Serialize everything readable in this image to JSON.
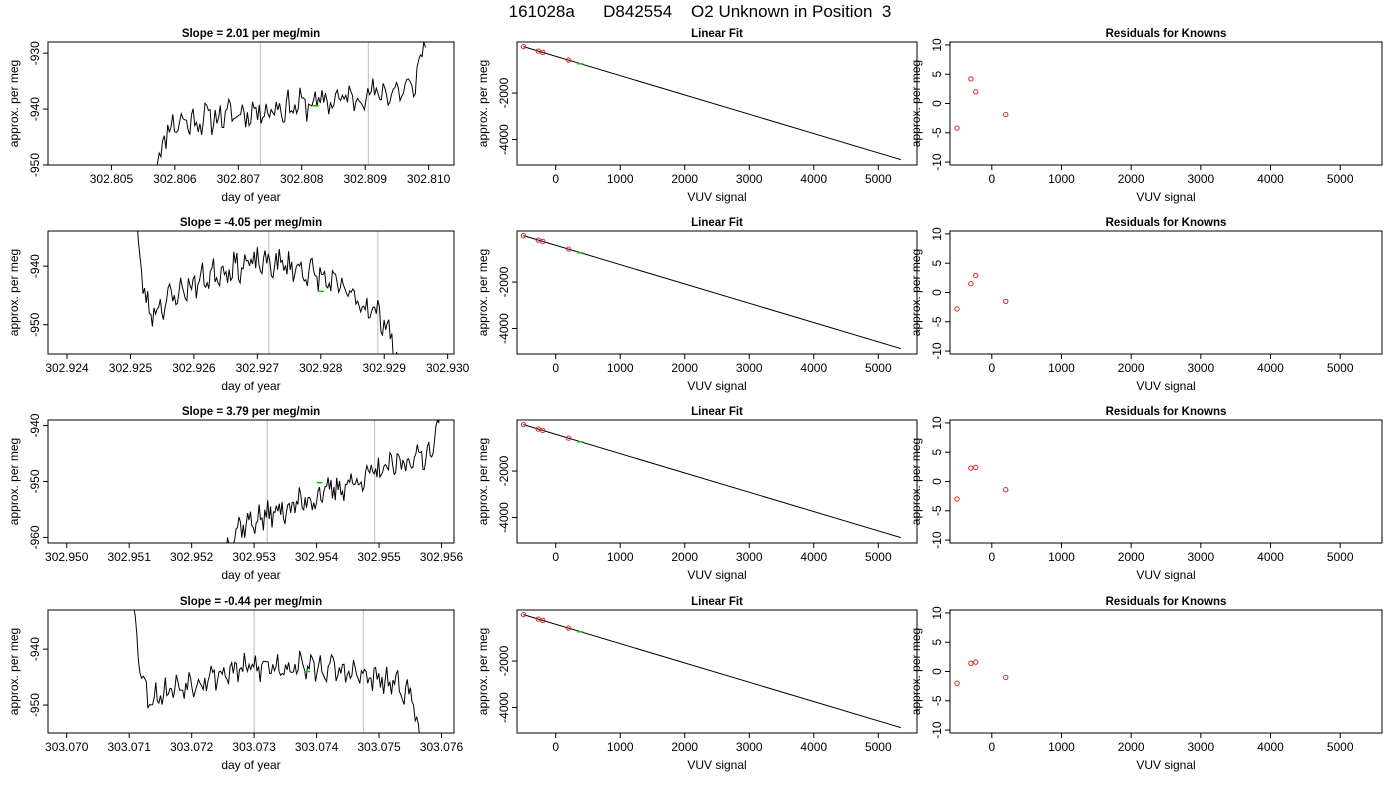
{
  "page_title": "161028a      D842554    O2 Unknown in Position  3",
  "colors": {
    "trace": "#000000",
    "marker_green": "#00cc00",
    "points_red": "#d62728",
    "vertical_lines": "#c8c8c8",
    "axes": "#000000"
  },
  "chart_data": [
    {
      "type": "line",
      "panel": "time-series",
      "row": 0,
      "title": "Slope =  2.01  per meg/min",
      "xlabel": "day of year",
      "ylabel": "approx. per meg",
      "xlim": [
        302.804,
        302.8104
      ],
      "ylim": [
        -950,
        -928
      ],
      "xticks": [
        "302.805",
        "302.806",
        "302.807",
        "302.808",
        "302.809",
        "302.810"
      ],
      "yticks": [
        "-950",
        "-940",
        "-930"
      ],
      "vlines": [
        302.80735,
        302.80905
      ],
      "green_marker": [
        302.80822,
        -939.4
      ],
      "trace": {
        "x_start": 302.8057,
        "x_end": 302.80995,
        "points": 160,
        "y_start": -951,
        "y_end": -926,
        "level_start": -943,
        "level_end": -936,
        "noise": 2.2,
        "seed": 11
      }
    },
    {
      "type": "scatter",
      "panel": "linear-fit",
      "row": 0,
      "title": "Linear Fit",
      "xlabel": "VUV signal",
      "ylabel": "approx. per meg",
      "xlim": [
        -600,
        5600
      ],
      "ylim": [
        -5100,
        200
      ],
      "xticks": [
        "0",
        "1000",
        "2000",
        "3000",
        "4000",
        "5000"
      ],
      "yticks": [
        "-4000",
        "-2000"
      ],
      "line": [
        [
          -500,
          0
        ],
        [
          5350,
          -4870
        ]
      ],
      "known_points": [
        [
          -500,
          0
        ],
        [
          -270,
          -190
        ],
        [
          -200,
          -250
        ],
        [
          200,
          -580
        ]
      ],
      "unknown_point": [
        380,
        -740
      ]
    },
    {
      "type": "scatter",
      "panel": "residuals",
      "row": 0,
      "title": "Residuals for Knowns",
      "xlabel": "VUV signal",
      "ylabel": "approx. per meg",
      "xlim": [
        -600,
        5600
      ],
      "ylim": [
        -10.5,
        10.5
      ],
      "xticks": [
        "0",
        "1000",
        "2000",
        "3000",
        "4000",
        "5000"
      ],
      "yticks": [
        "-10",
        "-5",
        "0",
        "5",
        "10"
      ],
      "points": [
        [
          -500,
          -4.2
        ],
        [
          -300,
          4.2
        ],
        [
          -230,
          2.0
        ],
        [
          200,
          -1.9
        ]
      ]
    },
    {
      "type": "line",
      "panel": "time-series",
      "row": 1,
      "title": "Slope =  -4.05  per meg/min",
      "xlabel": "day of year",
      "ylabel": "approx. per meg",
      "xlim": [
        302.9237,
        302.9301
      ],
      "ylim": [
        -955,
        -934
      ],
      "xticks": [
        "302.924",
        "302.925",
        "302.926",
        "302.927",
        "302.928",
        "302.929",
        "302.930"
      ],
      "yticks": [
        "-950",
        "-940"
      ],
      "vlines": [
        302.92718,
        302.9289
      ],
      "green_marker": [
        302.928,
        -944.3
      ],
      "trace": {
        "x_start": 302.92505,
        "x_end": 302.92922,
        "points": 170,
        "y_start": -926,
        "y_end": -958,
        "level_start": -950,
        "level_end": -951,
        "bump": 11,
        "noise": 2.0,
        "seed": 23
      }
    },
    {
      "type": "scatter",
      "panel": "linear-fit",
      "row": 1,
      "title": "Linear Fit",
      "xlabel": "VUV signal",
      "ylabel": "approx. per meg",
      "xlim": [
        -600,
        5600
      ],
      "ylim": [
        -5100,
        200
      ],
      "xticks": [
        "0",
        "1000",
        "2000",
        "3000",
        "4000",
        "5000"
      ],
      "yticks": [
        "-4000",
        "-2000"
      ],
      "line": [
        [
          -500,
          0
        ],
        [
          5350,
          -4870
        ]
      ],
      "known_points": [
        [
          -500,
          0
        ],
        [
          -270,
          -190
        ],
        [
          -200,
          -250
        ],
        [
          200,
          -580
        ]
      ],
      "unknown_point": [
        380,
        -740
      ]
    },
    {
      "type": "scatter",
      "panel": "residuals",
      "row": 1,
      "title": "Residuals for Knowns",
      "xlabel": "VUV signal",
      "ylabel": "approx. per meg",
      "xlim": [
        -600,
        5600
      ],
      "ylim": [
        -10.5,
        10.5
      ],
      "xticks": [
        "0",
        "1000",
        "2000",
        "3000",
        "4000",
        "5000"
      ],
      "yticks": [
        "-10",
        "-5",
        "0",
        "5",
        "10"
      ],
      "points": [
        [
          -500,
          -2.8
        ],
        [
          -300,
          1.5
        ],
        [
          -230,
          2.9
        ],
        [
          200,
          -1.5
        ]
      ]
    },
    {
      "type": "line",
      "panel": "time-series",
      "row": 2,
      "title": "Slope =  3.79  per meg/min",
      "xlabel": "day of year",
      "ylabel": "approx. per meg",
      "xlim": [
        302.9497,
        302.9562
      ],
      "ylim": [
        -961,
        -939
      ],
      "xticks": [
        "302.950",
        "302.951",
        "302.952",
        "302.953",
        "302.954",
        "302.955",
        "302.956"
      ],
      "yticks": [
        "-960",
        "-950",
        "-940"
      ],
      "vlines": [
        302.95321,
        302.95493
      ],
      "green_marker": [
        302.95405,
        -950.2
      ],
      "trace": {
        "x_start": 302.95255,
        "x_end": 302.95598,
        "points": 150,
        "y_start": -962,
        "y_end": -937,
        "level_start": -959,
        "level_end": -944,
        "noise": 2.0,
        "seed": 37
      }
    },
    {
      "type": "scatter",
      "panel": "linear-fit",
      "row": 2,
      "title": "Linear Fit",
      "xlabel": "VUV signal",
      "ylabel": "approx. per meg",
      "xlim": [
        -600,
        5600
      ],
      "ylim": [
        -5100,
        200
      ],
      "xticks": [
        "0",
        "1000",
        "2000",
        "3000",
        "4000",
        "5000"
      ],
      "yticks": [
        "-4000",
        "-2000"
      ],
      "line": [
        [
          -500,
          0
        ],
        [
          5350,
          -4870
        ]
      ],
      "known_points": [
        [
          -500,
          0
        ],
        [
          -270,
          -190
        ],
        [
          -200,
          -250
        ],
        [
          200,
          -580
        ]
      ],
      "unknown_point": [
        380,
        -740
      ]
    },
    {
      "type": "scatter",
      "panel": "residuals",
      "row": 2,
      "title": "Residuals for Knowns",
      "xlabel": "VUV signal",
      "ylabel": "approx. per meg",
      "xlim": [
        -600,
        5600
      ],
      "ylim": [
        -10.5,
        10.5
      ],
      "xticks": [
        "0",
        "1000",
        "2000",
        "3000",
        "4000",
        "5000"
      ],
      "yticks": [
        "-10",
        "-5",
        "0",
        "5",
        "10"
      ],
      "points": [
        [
          -500,
          -3.0
        ],
        [
          -300,
          2.3
        ],
        [
          -230,
          2.4
        ],
        [
          200,
          -1.4
        ]
      ]
    },
    {
      "type": "line",
      "panel": "time-series",
      "row": 3,
      "title": "Slope =  -0.44  per meg/min",
      "xlabel": "day of year",
      "ylabel": "approx. per meg",
      "xlim": [
        303.0697,
        303.0762
      ],
      "ylim": [
        -955,
        -933
      ],
      "xticks": [
        "303.070",
        "303.071",
        "303.072",
        "303.073",
        "303.074",
        "303.075",
        "303.076"
      ],
      "yticks": [
        "-950",
        "-940"
      ],
      "vlines": [
        303.073,
        303.07475
      ],
      "green_marker": [
        303.07385,
        -944.0
      ],
      "trace": {
        "x_start": 303.07102,
        "x_end": 303.07568,
        "points": 185,
        "y_start": -925,
        "y_end": -957,
        "level_start": -950,
        "level_end": -948,
        "bump": 6,
        "noise": 2.0,
        "seed": 53
      }
    },
    {
      "type": "scatter",
      "panel": "linear-fit",
      "row": 3,
      "title": "Linear Fit",
      "xlabel": "VUV signal",
      "ylabel": "approx. per meg",
      "xlim": [
        -600,
        5600
      ],
      "ylim": [
        -5100,
        200
      ],
      "xticks": [
        "0",
        "1000",
        "2000",
        "3000",
        "4000",
        "5000"
      ],
      "yticks": [
        "-4000",
        "-2000"
      ],
      "line": [
        [
          -500,
          0
        ],
        [
          5350,
          -4870
        ]
      ],
      "known_points": [
        [
          -500,
          0
        ],
        [
          -270,
          -190
        ],
        [
          -200,
          -250
        ],
        [
          200,
          -580
        ]
      ],
      "unknown_point": [
        380,
        -740
      ]
    },
    {
      "type": "scatter",
      "panel": "residuals",
      "row": 3,
      "title": "Residuals for Knowns",
      "xlabel": "VUV signal",
      "ylabel": "approx. per meg",
      "xlim": [
        -600,
        5600
      ],
      "ylim": [
        -10.5,
        10.5
      ],
      "xticks": [
        "0",
        "1000",
        "2000",
        "3000",
        "4000",
        "5000"
      ],
      "yticks": [
        "-10",
        "-5",
        "0",
        "5",
        "10"
      ],
      "points": [
        [
          -500,
          -2.0
        ],
        [
          -300,
          1.4
        ],
        [
          -230,
          1.6
        ],
        [
          200,
          -1.0
        ]
      ]
    }
  ]
}
